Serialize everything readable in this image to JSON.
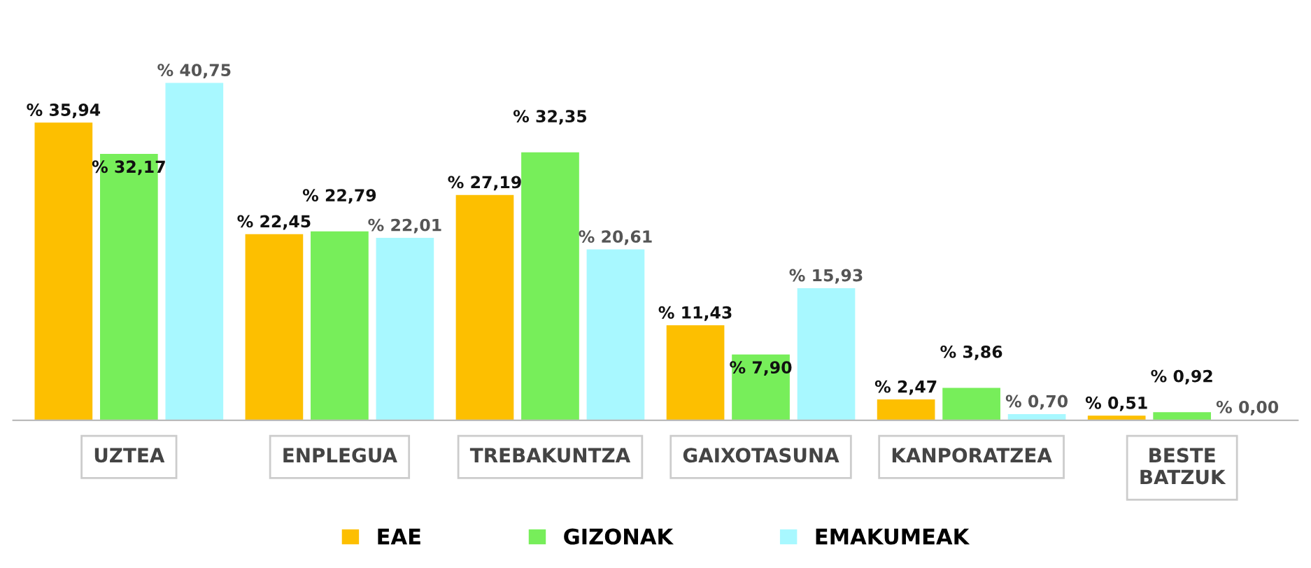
{
  "chart_data": {
    "type": "bar",
    "categories": [
      "UZTEA",
      "ENPLEGUA",
      "TREBAKUNTZA",
      "GAIXOTASUNA",
      "KANPORATZEA",
      "BESTE\nBATZUK"
    ],
    "series": [
      {
        "name": "EAE",
        "color": "#fdbf00",
        "values": [
          35.94,
          22.45,
          27.19,
          11.43,
          2.47,
          0.51
        ],
        "value_labels": [
          "% 35,94",
          "% 22,45",
          "% 27,19",
          "% 11,43",
          "% 2,47",
          "% 0,51"
        ]
      },
      {
        "name": "GIZONAK",
        "color": "#77ee5a",
        "values": [
          32.17,
          22.79,
          32.35,
          7.9,
          3.86,
          0.92
        ],
        "value_labels": [
          "% 32,17",
          "% 22,79",
          "% 32,35",
          "% 7,90",
          "% 3,86",
          "% 0,92"
        ]
      },
      {
        "name": "EMAKUMEAK",
        "color": "#a8f8ff",
        "values": [
          40.75,
          22.01,
          20.61,
          15.93,
          0.7,
          0.0
        ],
        "value_labels": [
          "% 40,75",
          "% 22,01",
          "% 20,61",
          "% 15,93",
          "% 0,70",
          "% 0,00"
        ]
      }
    ],
    "legend": "bottom",
    "grid": false
  }
}
